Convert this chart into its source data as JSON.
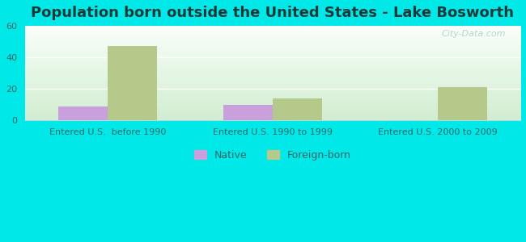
{
  "title": "Population born outside the United States - Lake Bosworth",
  "categories": [
    "Entered U.S.  before 1990",
    "Entered U.S. 1990 to 1999",
    "Entered U.S. 2000 to 2009"
  ],
  "native_values": [
    9,
    10,
    0
  ],
  "foreign_values": [
    47,
    14,
    21
  ],
  "native_color": "#c9a0dc",
  "foreign_color": "#b5c98a",
  "ylim": [
    0,
    60
  ],
  "yticks": [
    0,
    20,
    40,
    60
  ],
  "background_color": "#00e8e8",
  "bar_width": 0.3,
  "legend_native": "Native",
  "legend_foreign": "Foreign-born",
  "watermark": "City-Data.com",
  "title_fontsize": 13,
  "tick_fontsize": 8,
  "title_color": "#1a3a3a"
}
